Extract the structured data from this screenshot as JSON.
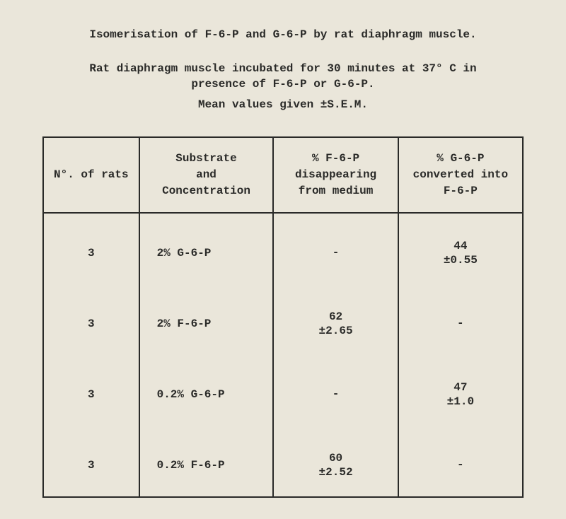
{
  "title": "Isomerisation of F-6-P and G-6-P by rat diaphragm muscle.",
  "description_line1": "Rat diaphragm muscle incubated for 30 minutes at 37° C in",
  "description_line2": "presence of F-6-P or G-6-P.",
  "mean_line": "Mean values given ±S.E.M.",
  "table": {
    "headers": {
      "col1": "N°. of rats",
      "col2_line1": "Substrate",
      "col2_line2": "and",
      "col2_line3": "Concentration",
      "col3_line1": "% F-6-P",
      "col3_line2": "disappearing",
      "col3_line3": "from medium",
      "col4_line1": "% G-6-P",
      "col4_line2": "converted into",
      "col4_line3": "F-6-P"
    },
    "rows": [
      {
        "n": "3",
        "sub": "2% G-6-P",
        "c3": "-",
        "c3sem": "",
        "c4": "44",
        "c4sem": "±0.55"
      },
      {
        "n": "3",
        "sub": "2% F-6-P",
        "c3": "62",
        "c3sem": "±2.65",
        "c4": "-",
        "c4sem": ""
      },
      {
        "n": "3",
        "sub": "0.2% G-6-P",
        "c3": "-",
        "c3sem": "",
        "c4": "47",
        "c4sem": "±1.0"
      },
      {
        "n": "3",
        "sub": "0.2% F-6-P",
        "c3": "60",
        "c3sem": "±2.52",
        "c4": "-",
        "c4sem": ""
      }
    ]
  }
}
